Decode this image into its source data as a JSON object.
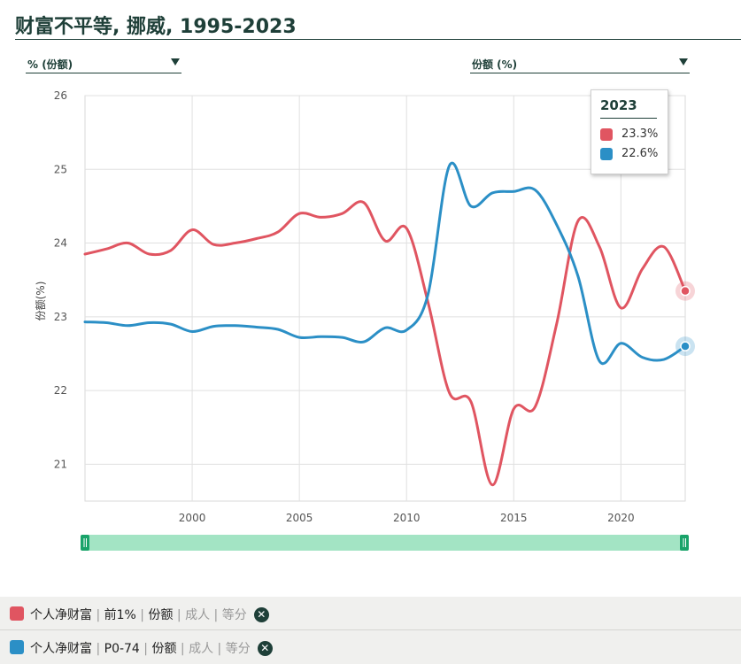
{
  "title": "财富不平等, 挪威, 1995-2023",
  "dropdowns": {
    "left": "% (份额)",
    "right": "份额 (%)"
  },
  "tooltip": {
    "year": "2023",
    "rows": [
      {
        "value": "23.3%",
        "color": "#e05561"
      },
      {
        "value": "22.6%",
        "color": "#2b8fc6"
      }
    ]
  },
  "legend": [
    {
      "color": "#e05561",
      "main": "个人净财富",
      "group": "前1%",
      "measure": "份额",
      "muted1": "成人",
      "muted2": "等分",
      "close": "✕"
    },
    {
      "color": "#2b8fc6",
      "main": "个人净财富",
      "group": "P0-74",
      "measure": "份额",
      "muted1": "成人",
      "muted2": "等分",
      "close": "✕"
    }
  ],
  "chart_data": {
    "type": "line",
    "ylabel": "份额(%)",
    "xlabel": "",
    "xlim": [
      1995,
      2023
    ],
    "ylim": [
      20.5,
      26
    ],
    "xticks": [
      2000,
      2005,
      2010,
      2015,
      2020
    ],
    "yticks": [
      21,
      22,
      23,
      24,
      25,
      26
    ],
    "grid": true,
    "series": [
      {
        "name": "前1%",
        "color": "#e05561",
        "x": [
          1995,
          1996,
          1997,
          1998,
          1999,
          2000,
          2001,
          2002,
          2003,
          2004,
          2005,
          2006,
          2007,
          2008,
          2009,
          2010,
          2011,
          2012,
          2013,
          2014,
          2015,
          2016,
          2017,
          2018,
          2019,
          2020,
          2021,
          2022,
          2023
        ],
        "values": [
          23.85,
          23.92,
          24.0,
          23.85,
          23.9,
          24.18,
          23.98,
          24.0,
          24.06,
          24.15,
          24.4,
          24.35,
          24.4,
          24.55,
          24.03,
          24.2,
          23.2,
          21.97,
          21.85,
          20.72,
          21.75,
          21.78,
          22.9,
          24.3,
          23.95,
          23.12,
          23.65,
          23.95,
          23.35
        ]
      },
      {
        "name": "P0-74",
        "color": "#2b8fc6",
        "x": [
          1995,
          1996,
          1997,
          1998,
          1999,
          2000,
          2001,
          2002,
          2003,
          2004,
          2005,
          2006,
          2007,
          2008,
          2009,
          2010,
          2011,
          2012,
          2013,
          2014,
          2015,
          2016,
          2017,
          2018,
          2019,
          2020,
          2021,
          2022,
          2023
        ],
        "values": [
          22.93,
          22.92,
          22.88,
          22.92,
          22.9,
          22.8,
          22.87,
          22.88,
          22.86,
          22.83,
          22.72,
          22.73,
          22.72,
          22.66,
          22.85,
          22.82,
          23.3,
          25.05,
          24.5,
          24.68,
          24.7,
          24.72,
          24.25,
          23.55,
          22.4,
          22.64,
          22.45,
          22.42,
          22.6
        ]
      }
    ]
  }
}
